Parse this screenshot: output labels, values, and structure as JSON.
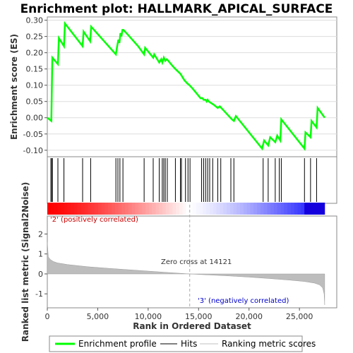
{
  "chart_data": {
    "type": "line",
    "title": "Enrichment plot: HALLMARK_APICAL_SURFACE",
    "top_panel": {
      "ylabel": "Enrichment score (ES)",
      "ylim": [
        -0.12,
        0.31
      ],
      "yticks": [
        -0.1,
        -0.05,
        0.0,
        0.05,
        0.1,
        0.15,
        0.2,
        0.25,
        0.3
      ],
      "ytick_labels": [
        "-0.10",
        "-0.05",
        "0.00",
        "0.05",
        "0.10",
        "0.15",
        "0.20",
        "0.25",
        "0.30"
      ],
      "series_color": "#00ff00",
      "grid": true,
      "es_curve": {
        "x": [
          0,
          400,
          450,
          500,
          1050,
          1150,
          1650,
          1750,
          3500,
          3600,
          4250,
          4350,
          6800,
          6900,
          7050,
          7150,
          7250,
          7350,
          7450,
          7550,
          8000,
          9000,
          9600,
          9700,
          10500,
          10600,
          11100,
          11300,
          11400,
          11550,
          11700,
          11850,
          12000,
          12400,
          12700,
          13200,
          13600,
          13900,
          14100,
          14400,
          14800,
          15200,
          15400,
          15500,
          15600,
          15700,
          15800,
          15900,
          16000,
          16500,
          16900,
          17100,
          17400,
          18300,
          18500,
          18700,
          21300,
          21500,
          21900,
          22100,
          22600,
          22800,
          23100,
          23200,
          25500,
          25600,
          26100,
          26200,
          26700,
          26800,
          27500
        ],
        "y": [
          0.0,
          -0.01,
          0.09,
          0.185,
          0.165,
          0.245,
          0.22,
          0.29,
          0.22,
          0.265,
          0.235,
          0.28,
          0.195,
          0.215,
          0.24,
          0.23,
          0.26,
          0.25,
          0.27,
          0.27,
          0.255,
          0.22,
          0.195,
          0.215,
          0.185,
          0.195,
          0.17,
          0.18,
          0.17,
          0.185,
          0.175,
          0.18,
          0.175,
          0.16,
          0.15,
          0.135,
          0.115,
          0.105,
          0.1,
          0.09,
          0.075,
          0.06,
          0.06,
          0.055,
          0.055,
          0.055,
          0.05,
          0.055,
          0.05,
          0.04,
          0.03,
          0.035,
          0.025,
          -0.005,
          -0.01,
          0.005,
          -0.095,
          -0.07,
          -0.085,
          -0.06,
          -0.075,
          -0.055,
          -0.07,
          -0.005,
          -0.095,
          -0.045,
          -0.06,
          -0.01,
          -0.03,
          0.03,
          0.0
        ]
      }
    },
    "hits": [
      350,
      450,
      500,
      1050,
      1650,
      3500,
      4300,
      6800,
      7000,
      7200,
      7500,
      9600,
      10500,
      11100,
      11400,
      11550,
      11700,
      11900,
      12700,
      13200,
      13300,
      13700,
      13950,
      14150,
      15300,
      15500,
      15700,
      15900,
      16100,
      16400,
      16900,
      17200,
      18200,
      18500,
      21400,
      21900,
      22600,
      23000,
      23200,
      25500,
      26100,
      26700
    ],
    "bottom_panel": {
      "ylabel": "Ranked list metric (Signal2Noise)",
      "xlabel": "Rank in Ordered Dataset",
      "ylim": [
        -1.7,
        2.9
      ],
      "yticks": [
        -1,
        0,
        1,
        2
      ],
      "ytick_labels": [
        "-1",
        "0",
        "1",
        "2"
      ],
      "xlim": [
        0,
        28700
      ],
      "xticks": [
        0,
        5000,
        10000,
        15000,
        20000,
        25000
      ],
      "xtick_labels": [
        "0",
        "5,000",
        "10,000",
        "15,000",
        "20,000",
        "25,000"
      ],
      "metric_curve": {
        "x": [
          0,
          100,
          300,
          600,
          1000,
          2000,
          4000,
          6000,
          8000,
          10000,
          12000,
          14121,
          16000,
          18000,
          20000,
          22000,
          24000,
          25500,
          26500,
          27000,
          27300,
          27450,
          27500
        ],
        "y": [
          1.6,
          0.85,
          0.72,
          0.62,
          0.55,
          0.47,
          0.36,
          0.28,
          0.21,
          0.14,
          0.07,
          0.0,
          -0.05,
          -0.1,
          -0.16,
          -0.23,
          -0.31,
          -0.38,
          -0.46,
          -0.55,
          -0.7,
          -1.0,
          -1.55
        ]
      },
      "zero_cross_rank": 14121,
      "zero_cross_label": "Zero cross at 14121",
      "pos_label": "'2' (positively correlated)",
      "neg_label": "'3' (negatively correlated)"
    },
    "legend": [
      {
        "label": "Enrichment profile",
        "color": "#00ff00"
      },
      {
        "label": "Hits",
        "color": "#000000"
      },
      {
        "label": "Ranking metric scores",
        "color": "#c0c0c0"
      }
    ]
  }
}
